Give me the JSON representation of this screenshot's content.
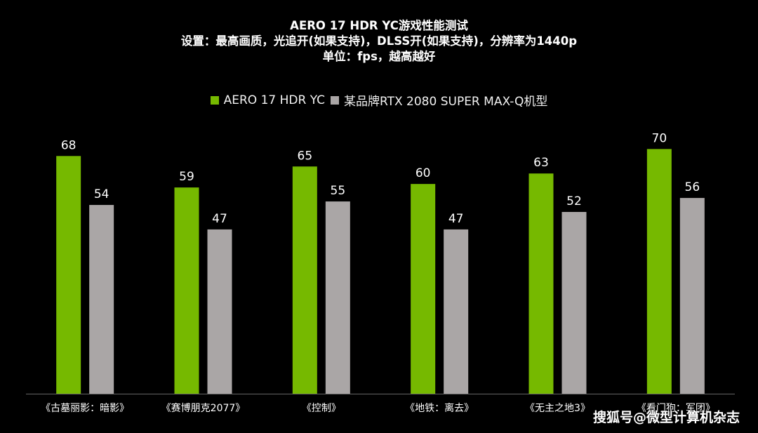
{
  "chart_data": {
    "type": "bar",
    "title": "AERO 17 HDR YC游戏性能测试",
    "subtitle": "设置：最高画质，光追开(如果支持)，DLSS开(如果支持)，分辨率为1440p",
    "unit_line": "单位：fps，越高越好",
    "categories": [
      "《古墓丽影：暗影》",
      "《赛博朋克2077》",
      "《控制》",
      "《地铁：离去》",
      "《无主之地3》",
      "《看门狗：军团》"
    ],
    "series": [
      {
        "name": "AERO 17 HDR YC",
        "color": "#76b900",
        "values": [
          68,
          59,
          65,
          60,
          63,
          70
        ]
      },
      {
        "name": "某品牌RTX 2080 SUPER MAX-Q机型",
        "color": "#aaa6a6",
        "values": [
          54,
          47,
          55,
          47,
          52,
          56
        ]
      }
    ],
    "ylim": [
      0,
      77.5
    ],
    "grid": false,
    "legend_position": "top-center",
    "data_labels": true
  },
  "watermark": "搜狐号@微型计算机杂志",
  "colors": {
    "background": "#000000",
    "text": "#ffffff",
    "axis_line": "#666666"
  }
}
